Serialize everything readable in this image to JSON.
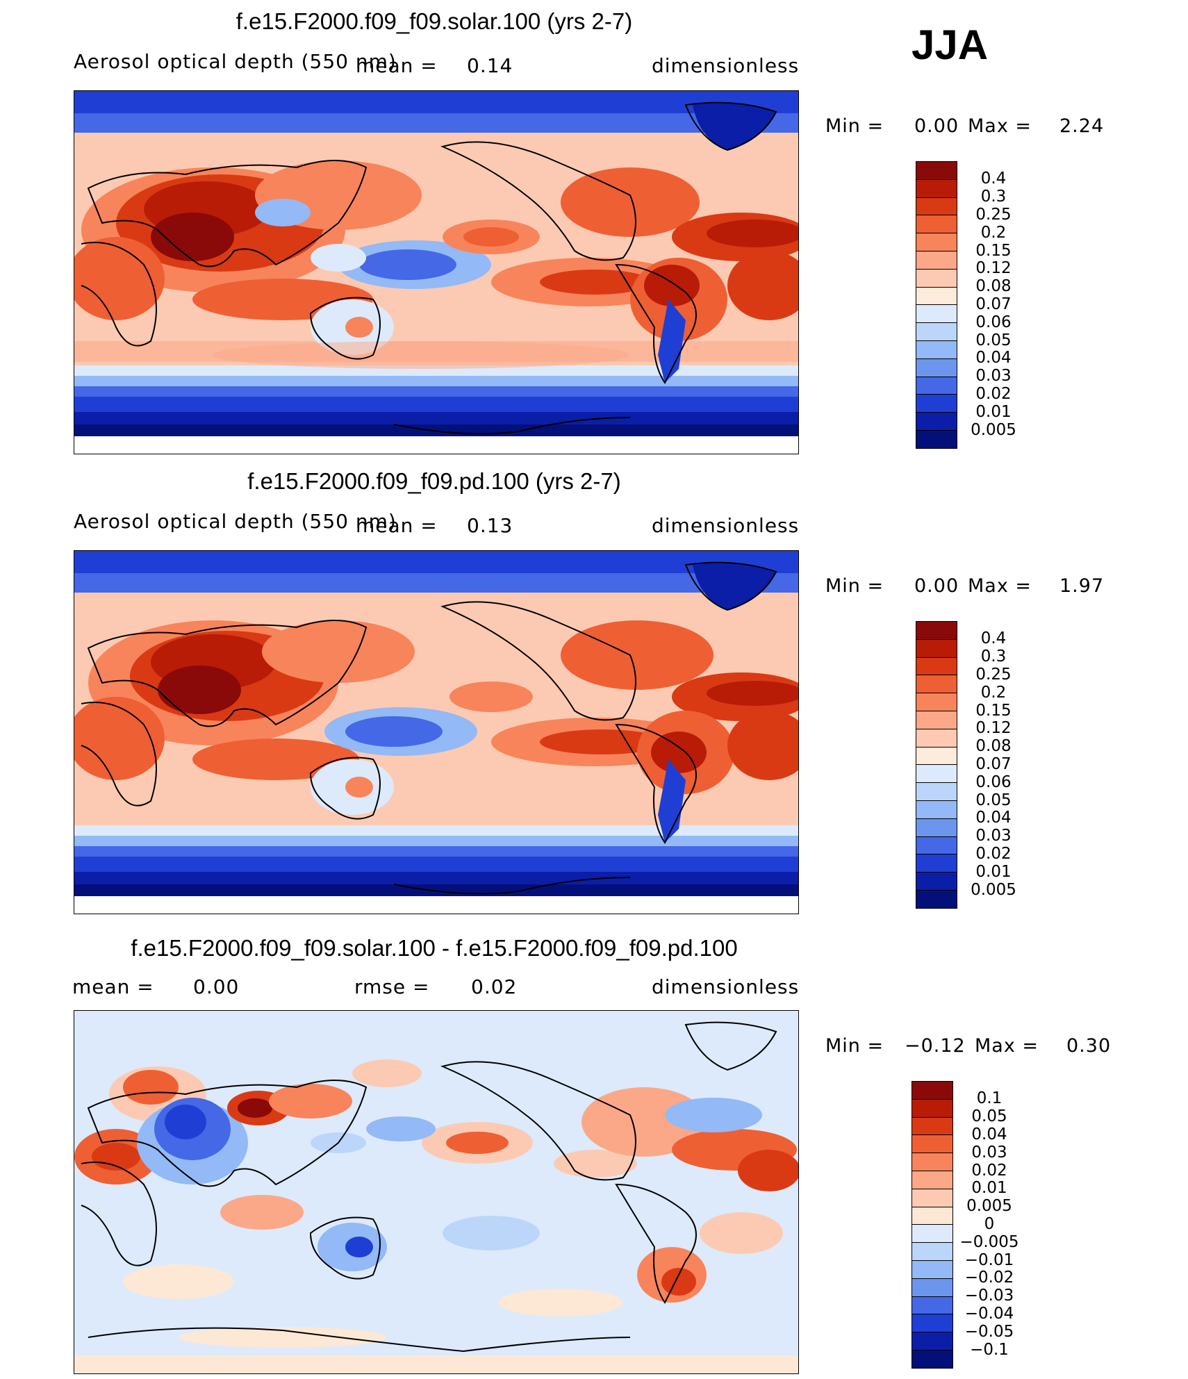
{
  "season": "JJA",
  "panels": [
    {
      "id": "solar",
      "title": "f.e15.F2000.f09_f09.solar.100 (yrs 2-7)",
      "variable_label": "Aerosol optical depth (550 nm)",
      "mean_label": "mean =",
      "mean_value": "0.14",
      "units": "dimensionless",
      "min_label": "Min =",
      "min_value": "0.00",
      "max_label": "Max =",
      "max_value": "2.24",
      "colorbar_levels": [
        "0.4",
        "0.3",
        "0.25",
        "0.2",
        "0.15",
        "0.12",
        "0.08",
        "0.07",
        "0.06",
        "0.05",
        "0.04",
        "0.03",
        "0.02",
        "0.01",
        "0.005"
      ]
    },
    {
      "id": "pd",
      "title": "f.e15.F2000.f09_f09.pd.100 (yrs 2-7)",
      "variable_label": "Aerosol optical depth (550 nm)",
      "mean_label": "mean =",
      "mean_value": "0.13",
      "units": "dimensionless",
      "min_label": "Min =",
      "min_value": "0.00",
      "max_label": "Max =",
      "max_value": "1.97",
      "colorbar_levels": [
        "0.4",
        "0.3",
        "0.25",
        "0.2",
        "0.15",
        "0.12",
        "0.08",
        "0.07",
        "0.06",
        "0.05",
        "0.04",
        "0.03",
        "0.02",
        "0.01",
        "0.005"
      ]
    },
    {
      "id": "diff",
      "title": "f.e15.F2000.f09_f09.solar.100 - f.e15.F2000.f09_f09.pd.100",
      "mean_label": "mean =",
      "mean_value": "0.00",
      "rmse_label": "rmse =",
      "rmse_value": "0.02",
      "units": "dimensionless",
      "min_label": "Min =",
      "min_value": "−0.12",
      "max_label": "Max =",
      "max_value": "0.30",
      "colorbar_levels": [
        "0.1",
        "0.05",
        "0.04",
        "0.03",
        "0.02",
        "0.01",
        "0.005",
        "0",
        "−0.005",
        "−0.01",
        "−0.02",
        "−0.03",
        "−0.04",
        "−0.05",
        "−0.1"
      ]
    }
  ],
  "colors": {
    "abs_scale": [
      "#8a0a0a",
      "#b81c06",
      "#d93a14",
      "#ef5f34",
      "#f8845b",
      "#fba888",
      "#fccab2",
      "#fdebdc",
      "#dceafb",
      "#bcd6fa",
      "#93b9f6",
      "#6c96ee",
      "#4468e6",
      "#1f3fd4",
      "#0a1ea8",
      "#03107a"
    ],
    "diff_scale": [
      "#8a0a0a",
      "#b81c06",
      "#d93a14",
      "#ef5f34",
      "#f8845b",
      "#fba888",
      "#fccab2",
      "#fde8d6",
      "#dceafb",
      "#bcd6fa",
      "#93b9f6",
      "#6c96ee",
      "#4468e6",
      "#1f3fd4",
      "#0a1ea8",
      "#03107a"
    ]
  }
}
